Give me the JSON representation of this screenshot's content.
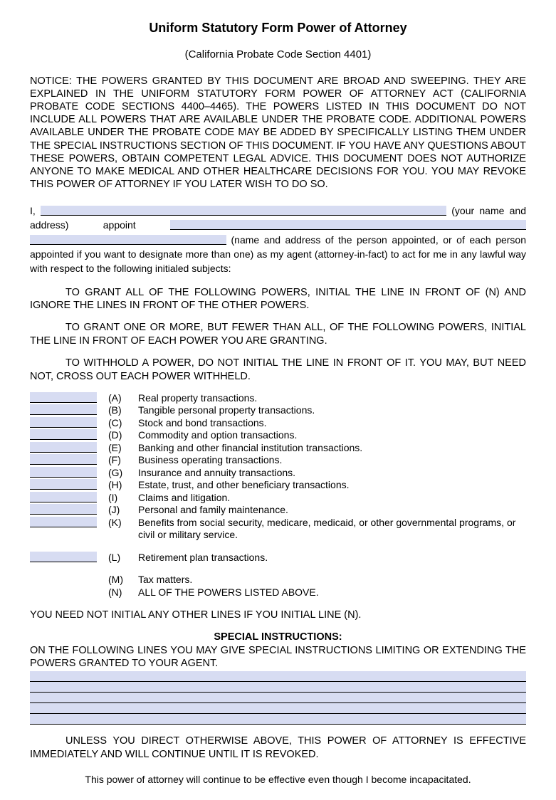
{
  "title": "Uniform Statutory Form Power of Attorney",
  "subtitle": "(California Probate Code Section 4401)",
  "notice": "NOTICE: THE POWERS GRANTED BY THIS DOCUMENT ARE BROAD AND SWEEPING.  THEY ARE EXPLAINED IN THE UNIFORM STATUTORY FORM POWER OF ATTORNEY ACT (CALIFORNIA PROBATE CODE SECTIONS 4400–4465). THE POWERS LISTED IN THIS DOCUMENT DO NOT INCLUDE ALL POWERS THAT ARE AVAILABLE UNDER THE PROBATE CODE.  ADDITIONAL POWERS AVAILABLE UNDER THE PROBATE CODE MAY BE ADDED BY SPECIFICALLY LISTING THEM UNDER THE SPECIAL INSTRUCTIONS SECTION OF THIS DOCUMENT. IF YOU HAVE ANY QUESTIONS ABOUT THESE POWERS, OBTAIN COMPETENT LEGAL ADVICE. THIS DOCUMENT DOES NOT AUTHORIZE ANYONE TO MAKE MEDICAL AND OTHER HEALTHCARE DECISIONS FOR YOU.  YOU MAY REVOKE THIS POWER OF ATTORNEY IF YOU LATER WISH TO DO SO.",
  "appoint": {
    "prefix": "I,",
    "label1": "(your name and address) appoint",
    "label2": "(name and address of the person appointed, or of each person appointed if you want to designate more than one) as my agent (attorney-in-fact) to act for me in any lawful way with respect to the following initialed subjects:",
    "name_value": "",
    "agent_value_line1": "",
    "agent_value_line2": ""
  },
  "instructions": {
    "grant_all": "TO GRANT ALL OF THE FOLLOWING POWERS, INITIAL THE LINE IN FRONT OF (N) AND IGNORE THE LINES IN FRONT OF THE OTHER POWERS.",
    "grant_some": "TO GRANT ONE OR MORE, BUT FEWER THAN ALL, OF THE FOLLOWING POWERS, INITIAL THE LINE IN FRONT OF EACH POWER YOU ARE GRANTING.",
    "withhold": "TO WITHHOLD A POWER, DO NOT INITIAL THE LINE IN FRONT OF IT.  YOU MAY, BUT NEED NOT, CROSS OUT EACH POWER WITHHELD."
  },
  "powers": [
    {
      "letter": "(A)",
      "text": "Real property transactions.",
      "box": true
    },
    {
      "letter": "(B)",
      "text": "Tangible personal property transactions.",
      "box": true
    },
    {
      "letter": "(C)",
      "text": "Stock and bond transactions.",
      "box": true
    },
    {
      "letter": "(D)",
      "text": "Commodity and option transactions.",
      "box": true
    },
    {
      "letter": "(E)",
      "text": "Banking and other financial institution transactions.",
      "box": true
    },
    {
      "letter": "(F)",
      "text": "Business operating transactions.",
      "box": true
    },
    {
      "letter": "(G)",
      "text": "Insurance and annuity transactions.",
      "box": true
    },
    {
      "letter": "(H)",
      "text": "Estate, trust, and other beneficiary transactions.",
      "box": true
    },
    {
      "letter": "(I)",
      "text": "Claims and litigation.",
      "box": true
    },
    {
      "letter": "(J)",
      "text": "Personal and family maintenance.",
      "box": true
    },
    {
      "letter": "(K)",
      "text": "Benefits from social security, medicare, medicaid, or other governmental programs, or civil or military service.",
      "box": true
    },
    {
      "letter": "(L)",
      "text": "Retirement plan transactions.",
      "box": true
    },
    {
      "letter": "(M)",
      "text": "Tax matters.",
      "box": false
    },
    {
      "letter": "(N)",
      "text": "ALL OF THE POWERS LISTED ABOVE.",
      "box": false
    }
  ],
  "note_n": "YOU NEED NOT INITIAL ANY OTHER LINES IF YOU INITIAL LINE (N).",
  "special": {
    "heading": "SPECIAL INSTRUCTIONS:",
    "intro": "ON THE FOLLOWING LINES YOU MAY GIVE SPECIAL INSTRUCTIONS LIMITING OR EXTENDING THE POWERS GRANTED TO YOUR AGENT.",
    "line_count": 5
  },
  "effective": "UNLESS YOU DIRECT OTHERWISE ABOVE, THIS POWER OF ATTORNEY IS EFFECTIVE IMMEDIATELY AND WILL CONTINUE UNTIL IT IS REVOKED.",
  "footer": "This power of attorney will continue to be effective even though I become incapacitated.",
  "colors": {
    "field_bg": "#d7dcf2",
    "text": "#000000",
    "page_bg": "#ffffff"
  }
}
